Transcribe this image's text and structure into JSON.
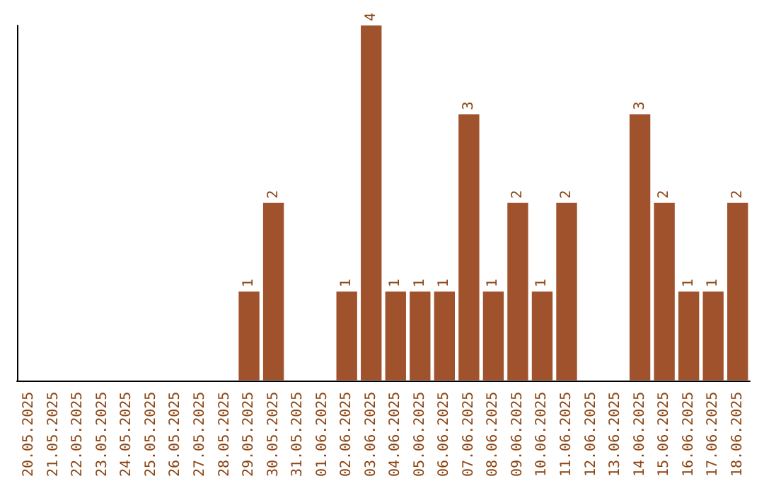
{
  "chart_data": {
    "type": "bar",
    "categories": [
      "20.05.2025",
      "21.05.2025",
      "22.05.2025",
      "23.05.2025",
      "24.05.2025",
      "25.05.2025",
      "26.05.2025",
      "27.05.2025",
      "28.05.2025",
      "29.05.2025",
      "30.05.2025",
      "31.05.2025",
      "01.06.2025",
      "02.06.2025",
      "03.06.2025",
      "04.06.2025",
      "05.06.2025",
      "06.06.2025",
      "07.06.2025",
      "08.06.2025",
      "09.06.2025",
      "10.06.2025",
      "11.06.2025",
      "12.06.2025",
      "13.06.2025",
      "14.06.2025",
      "15.06.2025",
      "16.06.2025",
      "17.06.2025",
      "18.06.2025"
    ],
    "values": [
      0,
      0,
      0,
      0,
      0,
      0,
      0,
      0,
      0,
      1,
      2,
      0,
      0,
      1,
      4,
      1,
      1,
      1,
      3,
      1,
      2,
      1,
      2,
      0,
      0,
      3,
      2,
      1,
      1,
      2
    ],
    "value_labels": [
      null,
      null,
      null,
      null,
      null,
      null,
      null,
      null,
      null,
      "1",
      "2",
      null,
      null,
      "1",
      "4",
      "1",
      "1",
      "1",
      "3",
      "1",
      "2",
      "1",
      "2",
      null,
      null,
      "3",
      "2",
      "1",
      "1",
      "2"
    ],
    "color": "#a0522d",
    "grid": false,
    "tick_labels": "x"
  }
}
